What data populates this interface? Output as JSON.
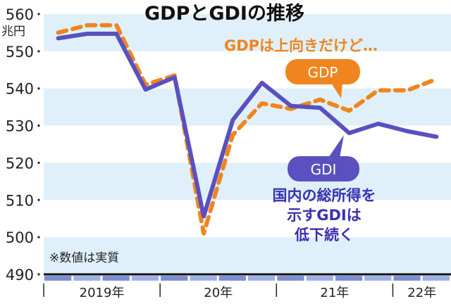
{
  "chart_data": {
    "type": "line",
    "title": "GDPとGDIの推移",
    "ylabel": "兆円",
    "ylim": [
      490,
      560
    ],
    "yticks": [
      490,
      500,
      510,
      520,
      530,
      540,
      550,
      560
    ],
    "x": [
      "2019Q1",
      "2019Q2",
      "2019Q3",
      "2019Q4",
      "2020Q1",
      "2020Q2",
      "2020Q3",
      "2020Q4",
      "2021Q1",
      "2021Q2",
      "2021Q3",
      "2021Q4",
      "2022Q1",
      "2022Q2"
    ],
    "year_labels": [
      "2019年",
      "20年",
      "21年",
      "22年"
    ],
    "series": [
      {
        "name": "GDP",
        "color": "#f0851e",
        "style": "dashed",
        "values": [
          555,
          557,
          557,
          541,
          543.5,
          501,
          527.5,
          536,
          534.5,
          537,
          534,
          539.5,
          539.5,
          542.5
        ]
      },
      {
        "name": "GDI",
        "color": "#5a50c0",
        "style": "solid",
        "values": [
          553.5,
          554.7,
          554.7,
          539.7,
          543,
          505.6,
          531.5,
          541.5,
          535.3,
          534.8,
          528,
          530.5,
          528.5,
          527
        ]
      }
    ],
    "annotations": {
      "gdp_note": "GDPは上向きだけど…",
      "gdi_note": [
        "国内の総所得を",
        "示すGDIは",
        "低下続く"
      ],
      "footnote": "※数値は実質"
    },
    "grid": "alternating bands"
  }
}
